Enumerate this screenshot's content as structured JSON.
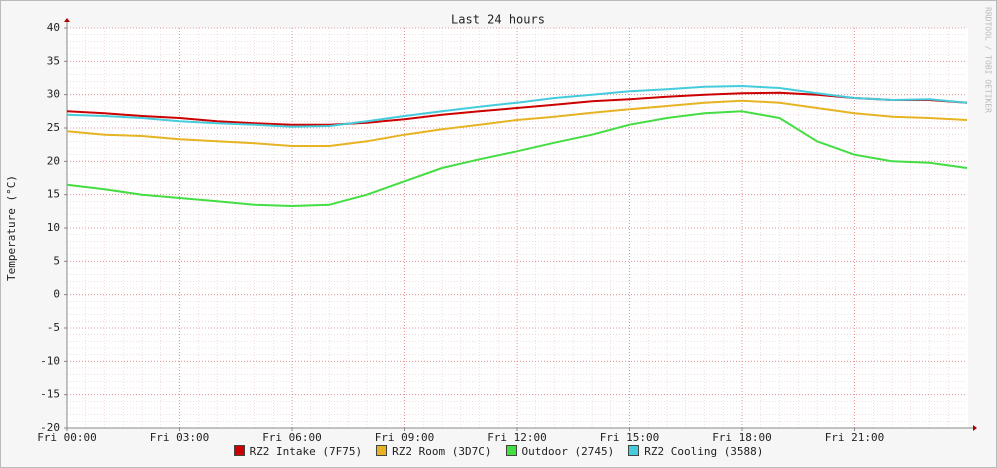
{
  "chart_data": {
    "type": "line",
    "title": "Last 24 hours",
    "y_label": "Temperature (°C)",
    "watermark": "RRDTOOL / TOBI OETIKER",
    "x": [
      0,
      1,
      2,
      3,
      4,
      5,
      6,
      7,
      8,
      9,
      10,
      11,
      12,
      13,
      14,
      15,
      16,
      17,
      18,
      19,
      20,
      21,
      22,
      23,
      24
    ],
    "xlim": [
      0,
      24
    ],
    "xticks": [
      {
        "value": 0,
        "label": "Fri 00:00"
      },
      {
        "value": 3,
        "label": "Fri 03:00"
      },
      {
        "value": 6,
        "label": "Fri 06:00"
      },
      {
        "value": 9,
        "label": "Fri 09:00"
      },
      {
        "value": 12,
        "label": "Fri 12:00"
      },
      {
        "value": 15,
        "label": "Fri 15:00"
      },
      {
        "value": 18,
        "label": "Fri 18:00"
      },
      {
        "value": 21,
        "label": "Fri 21:00"
      }
    ],
    "ylim": [
      -20,
      40
    ],
    "yticks": [
      -20,
      -15,
      -10,
      -5,
      0,
      5,
      10,
      15,
      20,
      25,
      30,
      35,
      40
    ],
    "grid": true,
    "series": [
      {
        "name": "RZ2 Intake (7F75)",
        "color": "#cc0000",
        "values": [
          27.5,
          27.2,
          26.8,
          26.5,
          26,
          25.7,
          25.5,
          25.5,
          25.8,
          26.3,
          27,
          27.5,
          28,
          28.5,
          29,
          29.3,
          29.7,
          30,
          30.2,
          30.3,
          30,
          29.5,
          29.2,
          29.2,
          28.8
        ]
      },
      {
        "name": "RZ2 Room (3D7C)",
        "color": "#e6b422",
        "values": [
          24.5,
          24,
          23.8,
          23.3,
          23,
          22.7,
          22.3,
          22.3,
          23,
          24,
          24.8,
          25.5,
          26.2,
          26.7,
          27.3,
          27.8,
          28.3,
          28.8,
          29.1,
          28.8,
          28,
          27.2,
          26.7,
          26.5,
          26.2
        ]
      },
      {
        "name": "Outdoor (2745)",
        "color": "#44dd44",
        "values": [
          16.5,
          15.8,
          15,
          14.5,
          14,
          13.5,
          13.3,
          13.5,
          15,
          17,
          19,
          20.3,
          21.5,
          22.8,
          24,
          25.5,
          26.5,
          27.2,
          27.5,
          26.5,
          23,
          21,
          20,
          19.8,
          19
        ]
      },
      {
        "name": "RZ2 Cooling (3588)",
        "color": "#44ccdd",
        "values": [
          27,
          26.8,
          26.5,
          26,
          25.7,
          25.5,
          25.2,
          25.3,
          26,
          26.8,
          27.5,
          28.2,
          28.8,
          29.5,
          30,
          30.5,
          30.8,
          31.2,
          31.3,
          31,
          30.2,
          29.5,
          29.2,
          29.3,
          28.8
        ]
      }
    ]
  }
}
